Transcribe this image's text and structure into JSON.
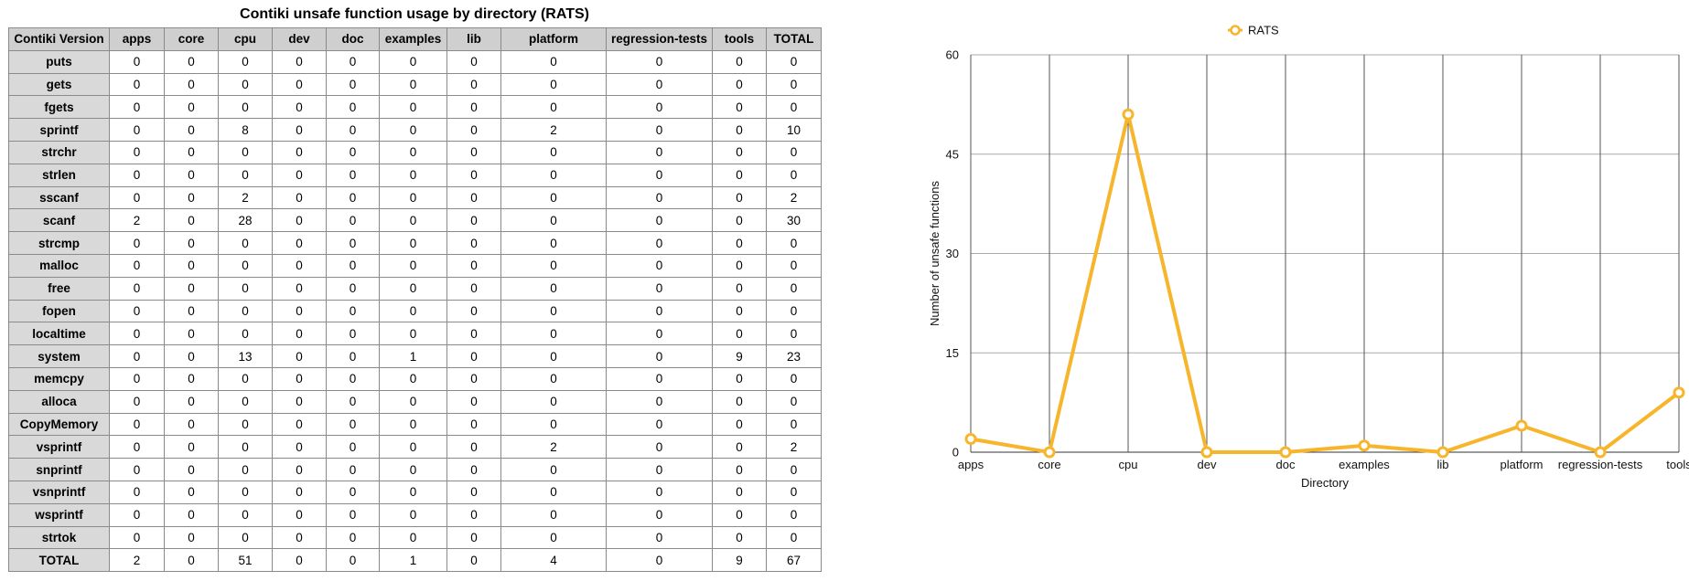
{
  "table": {
    "title": "Contiki unsafe function usage by directory (RATS)",
    "header": [
      "Contiki Version",
      "apps",
      "core",
      "cpu",
      "dev",
      "doc",
      "examples",
      "lib",
      "platform",
      "regression-tests",
      "tools",
      "TOTAL"
    ],
    "rows": [
      {
        "name": "puts",
        "values": [
          "0",
          "0",
          "0",
          "0",
          "0",
          "0",
          "0",
          "0",
          "0",
          "0",
          "0"
        ]
      },
      {
        "name": "gets",
        "values": [
          "0",
          "0",
          "0",
          "0",
          "0",
          "0",
          "0",
          "0",
          "0",
          "0",
          "0"
        ]
      },
      {
        "name": "fgets",
        "values": [
          "0",
          "0",
          "0",
          "0",
          "0",
          "0",
          "0",
          "0",
          "0",
          "0",
          "0"
        ]
      },
      {
        "name": "sprintf",
        "values": [
          "0",
          "0",
          "8",
          "0",
          "0",
          "0",
          "0",
          "2",
          "0",
          "0",
          "10"
        ]
      },
      {
        "name": "strchr",
        "values": [
          "0",
          "0",
          "0",
          "0",
          "0",
          "0",
          "0",
          "0",
          "0",
          "0",
          "0"
        ]
      },
      {
        "name": "strlen",
        "values": [
          "0",
          "0",
          "0",
          "0",
          "0",
          "0",
          "0",
          "0",
          "0",
          "0",
          "0"
        ]
      },
      {
        "name": "sscanf",
        "values": [
          "0",
          "0",
          "2",
          "0",
          "0",
          "0",
          "0",
          "0",
          "0",
          "0",
          "2"
        ]
      },
      {
        "name": "scanf",
        "values": [
          "2",
          "0",
          "28",
          "0",
          "0",
          "0",
          "0",
          "0",
          "0",
          "0",
          "30"
        ]
      },
      {
        "name": "strcmp",
        "values": [
          "0",
          "0",
          "0",
          "0",
          "0",
          "0",
          "0",
          "0",
          "0",
          "0",
          "0"
        ]
      },
      {
        "name": "malloc",
        "values": [
          "0",
          "0",
          "0",
          "0",
          "0",
          "0",
          "0",
          "0",
          "0",
          "0",
          "0"
        ]
      },
      {
        "name": "free",
        "values": [
          "0",
          "0",
          "0",
          "0",
          "0",
          "0",
          "0",
          "0",
          "0",
          "0",
          "0"
        ]
      },
      {
        "name": "fopen",
        "values": [
          "0",
          "0",
          "0",
          "0",
          "0",
          "0",
          "0",
          "0",
          "0",
          "0",
          "0"
        ]
      },
      {
        "name": "localtime",
        "values": [
          "0",
          "0",
          "0",
          "0",
          "0",
          "0",
          "0",
          "0",
          "0",
          "0",
          "0"
        ]
      },
      {
        "name": "system",
        "values": [
          "0",
          "0",
          "13",
          "0",
          "0",
          "1",
          "0",
          "0",
          "0",
          "9",
          "23"
        ]
      },
      {
        "name": "memcpy",
        "values": [
          "0",
          "0",
          "0",
          "0",
          "0",
          "0",
          "0",
          "0",
          "0",
          "0",
          "0"
        ]
      },
      {
        "name": "alloca",
        "values": [
          "0",
          "0",
          "0",
          "0",
          "0",
          "0",
          "0",
          "0",
          "0",
          "0",
          "0"
        ]
      },
      {
        "name": "CopyMemory",
        "values": [
          "0",
          "0",
          "0",
          "0",
          "0",
          "0",
          "0",
          "0",
          "0",
          "0",
          "0"
        ]
      },
      {
        "name": "vsprintf",
        "values": [
          "0",
          "0",
          "0",
          "0",
          "0",
          "0",
          "0",
          "2",
          "0",
          "0",
          "2"
        ]
      },
      {
        "name": "snprintf",
        "values": [
          "0",
          "0",
          "0",
          "0",
          "0",
          "0",
          "0",
          "0",
          "0",
          "0",
          "0"
        ]
      },
      {
        "name": "vsnprintf",
        "values": [
          "0",
          "0",
          "0",
          "0",
          "0",
          "0",
          "0",
          "0",
          "0",
          "0",
          "0"
        ]
      },
      {
        "name": "wsprintf",
        "values": [
          "0",
          "0",
          "0",
          "0",
          "0",
          "0",
          "0",
          "0",
          "0",
          "0",
          "0"
        ]
      },
      {
        "name": "strtok",
        "values": [
          "0",
          "0",
          "0",
          "0",
          "0",
          "0",
          "0",
          "0",
          "0",
          "0",
          "0"
        ]
      },
      {
        "name": "TOTAL",
        "values": [
          "2",
          "0",
          "51",
          "0",
          "0",
          "1",
          "0",
          "4",
          "0",
          "9",
          "67"
        ]
      }
    ]
  },
  "chart_data": {
    "type": "line",
    "categories": [
      "apps",
      "core",
      "cpu",
      "dev",
      "doc",
      "examples",
      "lib",
      "platform",
      "regression-tests",
      "tools"
    ],
    "series": [
      {
        "name": "RATS",
        "values": [
          2,
          0,
          51,
          0,
          0,
          1,
          0,
          4,
          0,
          9
        ],
        "color": "#f7b52c"
      }
    ],
    "xlabel": "Directory",
    "ylabel": "Number of unsafe functions",
    "ylim": [
      0,
      60
    ],
    "yticks": [
      0,
      15,
      30,
      45,
      60
    ],
    "grid": true,
    "legend": "top-center"
  }
}
